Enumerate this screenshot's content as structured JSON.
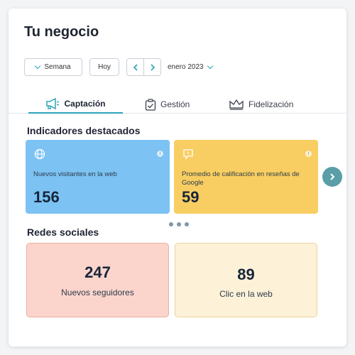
{
  "header": {
    "title": "Tu negocio"
  },
  "toolbar": {
    "period_label": "Semana",
    "today_label": "Hoy",
    "month_label": "enero 2023"
  },
  "tabs": [
    {
      "label": "Captación",
      "icon": "megaphone-icon",
      "active": true
    },
    {
      "label": "Gestión",
      "icon": "clipboard-check-icon",
      "active": false
    },
    {
      "label": "Fidelización",
      "icon": "crown-icon",
      "active": false
    }
  ],
  "highlights": {
    "title": "Indicadores destacados",
    "cards": [
      {
        "label": "Nuevos visitantes en la web",
        "value": "156",
        "icon": "globe-icon",
        "color": "#7cc2f3"
      },
      {
        "label": "Promedio de calificación en reseñas de Google",
        "value": "59",
        "icon": "review-icon",
        "color": "#f8ce62"
      }
    ],
    "info_label": "i"
  },
  "social": {
    "title": "Redes sociales",
    "cards": [
      {
        "value": "247",
        "label": "Nuevos seguidores",
        "color": "#fbd5cc"
      },
      {
        "value": "89",
        "label": "Clic en la web",
        "color": "#fdf1d8"
      }
    ]
  },
  "colors": {
    "accent": "#2ba3b8",
    "next_button": "#5a9ea8"
  }
}
